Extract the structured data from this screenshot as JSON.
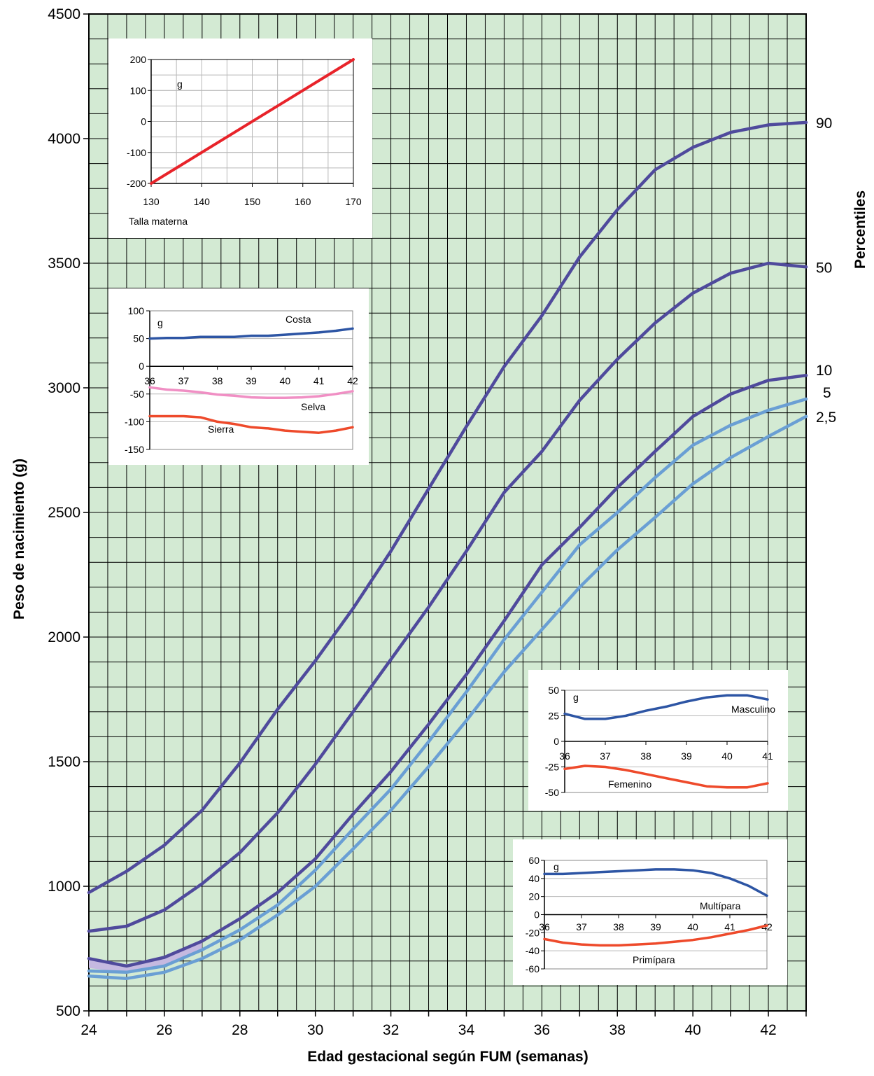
{
  "chart_data": {
    "type": "line",
    "main": {
      "xlabel": "Edad gestacional según FUM (semanas)",
      "ylabel": "Peso de nacimiento (g)",
      "right_label": "Percentiles",
      "xlim": [
        24,
        43
      ],
      "ylim": [
        500,
        4500
      ],
      "x_ticks": [
        "24",
        "26",
        "28",
        "30",
        "32",
        "34",
        "36",
        "38",
        "40",
        "42"
      ],
      "y_ticks": [
        "500",
        "1000",
        "1500",
        "2000",
        "2500",
        "3000",
        "3500",
        "4000",
        "4500"
      ],
      "grid": true,
      "background_color": "#d3ead3",
      "series": [
        {
          "name": "90",
          "color": "#4f4a9c",
          "x": [
            24,
            25,
            26,
            27,
            28,
            29,
            30,
            31,
            32,
            33,
            34,
            35,
            36,
            37,
            38,
            39,
            40,
            41,
            42,
            43
          ],
          "y": [
            975,
            1060,
            1165,
            1305,
            1495,
            1710,
            1905,
            2115,
            2345,
            2595,
            2845,
            3085,
            3290,
            3525,
            3715,
            3875,
            3965,
            4025,
            4055,
            4065
          ]
        },
        {
          "name": "50",
          "color": "#4f4a9c",
          "x": [
            24,
            25,
            26,
            27,
            28,
            29,
            30,
            31,
            32,
            33,
            34,
            35,
            36,
            37,
            38,
            39,
            40,
            41,
            42,
            43
          ],
          "y": [
            820,
            840,
            905,
            1010,
            1135,
            1295,
            1490,
            1700,
            1910,
            2120,
            2345,
            2580,
            2745,
            2950,
            3115,
            3260,
            3380,
            3460,
            3500,
            3485
          ]
        },
        {
          "name": "10",
          "color": "#4f4a9c",
          "x": [
            24,
            25,
            26,
            27,
            28,
            29,
            30,
            31,
            32,
            33,
            34,
            35,
            36,
            37,
            38,
            39,
            40,
            41,
            42,
            43
          ],
          "y": [
            710,
            680,
            715,
            780,
            870,
            975,
            1110,
            1290,
            1460,
            1650,
            1850,
            2065,
            2290,
            2440,
            2600,
            2745,
            2885,
            2975,
            3030,
            3050
          ]
        },
        {
          "name": "5",
          "color": "#6a9fd4",
          "x": [
            24,
            25,
            26,
            27,
            28,
            29,
            30,
            31,
            32,
            33,
            34,
            35,
            36,
            37,
            38,
            39,
            40,
            41,
            42,
            43
          ],
          "y": [
            660,
            655,
            680,
            745,
            825,
            925,
            1065,
            1230,
            1390,
            1580,
            1780,
            1990,
            2180,
            2370,
            2500,
            2640,
            2770,
            2850,
            2910,
            2955
          ]
        },
        {
          "name": "2,5",
          "color": "#6a9fd4",
          "x": [
            24,
            25,
            26,
            27,
            28,
            29,
            30,
            31,
            32,
            33,
            34,
            35,
            36,
            37,
            38,
            39,
            40,
            41,
            42,
            43
          ],
          "y": [
            640,
            630,
            655,
            710,
            785,
            885,
            1000,
            1150,
            1305,
            1480,
            1665,
            1860,
            2030,
            2200,
            2350,
            2480,
            2615,
            2720,
            2805,
            2885
          ]
        }
      ],
      "band": {
        "color": "#c5b9e0",
        "x": [
          24,
          24.5,
          25,
          25.5,
          26,
          26.5,
          27
        ],
        "y_low": [
          672,
          663,
          655,
          660,
          680,
          710,
          745
        ],
        "y_high": [
          705,
          692,
          688,
          696,
          715,
          742,
          780
        ]
      }
    },
    "insets": [
      {
        "type": "line",
        "xlabel": "Talla materna",
        "unit": "g",
        "xlim": [
          130,
          170
        ],
        "ylim": [
          -200,
          200
        ],
        "x_ticks": [
          "130",
          "140",
          "150",
          "160",
          "170"
        ],
        "y_ticks": [
          "-200",
          "-100",
          "0",
          "100",
          "200"
        ],
        "series": [
          {
            "color": "#e8232a",
            "x": [
              130,
              170
            ],
            "y": [
              -200,
              200
            ]
          }
        ]
      },
      {
        "type": "line",
        "unit": "g",
        "xlim": [
          36,
          42
        ],
        "ylim": [
          -150,
          100
        ],
        "x_ticks": [
          "36",
          "37",
          "38",
          "39",
          "40",
          "41",
          "42"
        ],
        "y_ticks": [
          "-150",
          "-100",
          "-50",
          "0",
          "50",
          "100"
        ],
        "series": [
          {
            "name": "Costa",
            "color": "#2d55a4",
            "x": [
              36,
              36.5,
              37,
              37.5,
              38,
              38.5,
              39,
              39.5,
              40,
              40.5,
              41,
              41.5,
              42
            ],
            "y": [
              50,
              51,
              51,
              53,
              53,
              53,
              55,
              55,
              57,
              59,
              61,
              64,
              68
            ]
          },
          {
            "name": "Selva",
            "color": "#f08fc4",
            "x": [
              36,
              36.5,
              37,
              37.5,
              38,
              38.5,
              39,
              39.5,
              40,
              40.5,
              41,
              41.5,
              42
            ],
            "y": [
              -38,
              -42,
              -44,
              -47,
              -51,
              -53,
              -56,
              -57,
              -57,
              -56,
              -54,
              -50,
              -45
            ]
          },
          {
            "name": "Sierra",
            "color": "#ee4a2b",
            "x": [
              36,
              36.5,
              37,
              37.5,
              38,
              38.5,
              39,
              39.5,
              40,
              40.5,
              41,
              41.5,
              42
            ],
            "y": [
              -90,
              -90,
              -90,
              -92,
              -100,
              -104,
              -110,
              -112,
              -116,
              -118,
              -120,
              -116,
              -110
            ]
          }
        ]
      },
      {
        "type": "line",
        "unit": "g",
        "xlim": [
          36,
          41
        ],
        "ylim": [
          -50,
          50
        ],
        "x_ticks": [
          "36",
          "37",
          "38",
          "39",
          "40",
          "41"
        ],
        "y_ticks": [
          "-50",
          "-25",
          "0",
          "25",
          "50"
        ],
        "series": [
          {
            "name": "Masculino",
            "color": "#2d55a4",
            "x": [
              36,
              36.5,
              37,
              37.5,
              38,
              38.5,
              39,
              39.5,
              40,
              40.5,
              41
            ],
            "y": [
              27,
              22,
              22,
              25,
              30,
              34,
              39,
              43,
              45,
              45,
              41
            ]
          },
          {
            "name": "Femenino",
            "color": "#ee4a2b",
            "x": [
              36,
              36.5,
              37,
              37.5,
              38,
              38.5,
              39,
              39.5,
              40,
              40.5,
              41
            ],
            "y": [
              -27,
              -24,
              -25,
              -28,
              -32,
              -36,
              -40,
              -44,
              -45,
              -45,
              -41
            ]
          }
        ]
      },
      {
        "type": "line",
        "unit": "g",
        "xlim": [
          36,
          42
        ],
        "ylim": [
          -60,
          60
        ],
        "x_ticks": [
          "36",
          "37",
          "38",
          "39",
          "40",
          "41",
          "42"
        ],
        "y_ticks": [
          "-60",
          "-40",
          "-20",
          "0",
          "20",
          "40",
          "60"
        ],
        "series": [
          {
            "name": "Multípara",
            "color": "#2d55a4",
            "x": [
              36,
              36.5,
              37,
              37.5,
              38,
              38.5,
              39,
              39.5,
              40,
              40.5,
              41,
              41.5,
              42
            ],
            "y": [
              45,
              45,
              46,
              47,
              48,
              49,
              50,
              50,
              49,
              46,
              40,
              32,
              21
            ]
          },
          {
            "name": "Primípara",
            "color": "#ee4a2b",
            "x": [
              36,
              36.5,
              37,
              37.5,
              38,
              38.5,
              39,
              39.5,
              40,
              40.5,
              41,
              41.5,
              42
            ],
            "y": [
              -27,
              -31,
              -33,
              -34,
              -34,
              -33,
              -32,
              -30,
              -28,
              -25,
              -21,
              -17,
              -12
            ]
          }
        ]
      }
    ]
  }
}
